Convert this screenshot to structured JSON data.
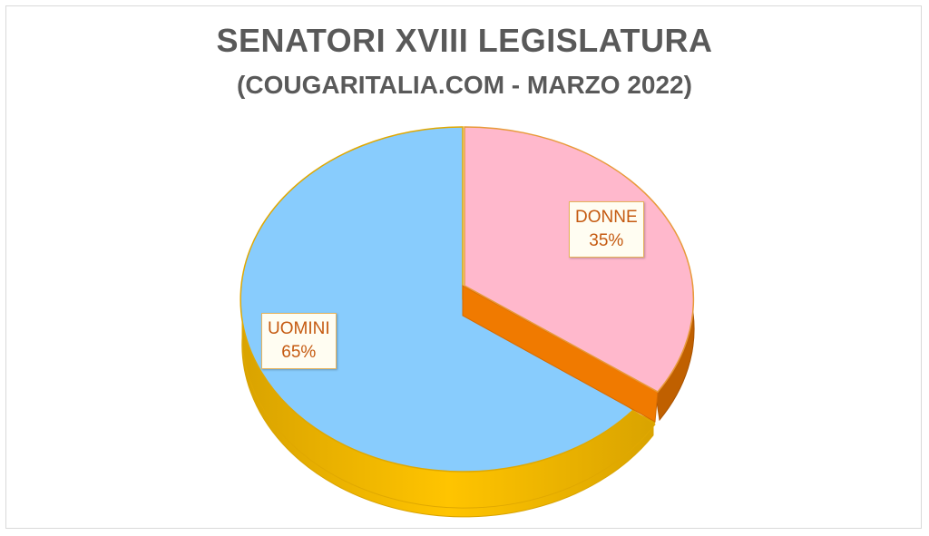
{
  "chart_data": {
    "type": "pie",
    "title": "SENATORI XVIII LEGISLATURA",
    "subtitle": "(COUGARITALIA.COM - MARZO 2022)",
    "style": "3d-exploded",
    "slices": [
      {
        "label": "DONNE",
        "value": 35,
        "display": "35%",
        "color": "#ffb8cc",
        "side_color": "#f07a00"
      },
      {
        "label": "UOMINI",
        "value": 65,
        "display": "65%",
        "color": "#88ccfd",
        "side_color": "#f5b800"
      }
    ],
    "legend": "none"
  }
}
